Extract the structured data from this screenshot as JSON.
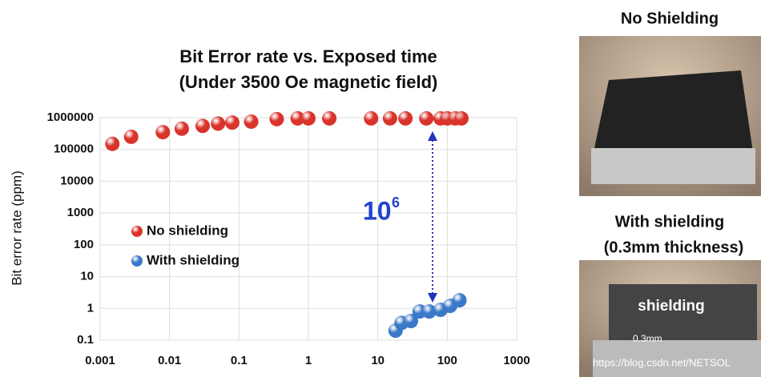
{
  "chart_data": {
    "type": "scatter",
    "title": [
      "Bit Error rate vs. Exposed time",
      "(Under 3500 Oe magnetic field)"
    ],
    "y_label": "Bit error rate  (ppm)",
    "xscale": "log",
    "yscale": "log",
    "grid": true,
    "legend": "center-left",
    "xlim": [
      0.001,
      1000
    ],
    "xticks": [
      0.001,
      0.01,
      0.1,
      1,
      10,
      100,
      1000
    ],
    "ylim": [
      0.1,
      1000000
    ],
    "yticks": [
      0.1,
      1,
      10,
      100,
      1000,
      10000,
      100000,
      1000000
    ],
    "series": [
      {
        "name": "No shielding",
        "color": "#d9342b",
        "x": [
          0.0015,
          0.0028,
          0.008,
          0.015,
          0.03,
          0.05,
          0.08,
          0.15,
          0.35,
          0.7,
          1,
          2,
          8,
          15,
          25,
          50,
          80,
          100,
          130,
          160
        ],
        "values": [
          150000,
          250000,
          350000,
          450000,
          550000,
          650000,
          700000,
          750000,
          900000,
          950000,
          950000,
          950000,
          950000,
          950000,
          950000,
          950000,
          950000,
          950000,
          950000,
          950000
        ]
      },
      {
        "name": "With shielding",
        "color": "#3a78c8",
        "x": [
          18,
          22,
          30,
          40,
          55,
          80,
          110,
          150
        ],
        "values": [
          0.2,
          0.35,
          0.4,
          0.8,
          0.8,
          0.9,
          1.2,
          1.8
        ]
      }
    ],
    "annotation": {
      "base": "10",
      "exponent": "6"
    }
  },
  "photos": [
    {
      "title": [
        "No Shielding"
      ]
    },
    {
      "title": [
        "With shielding",
        "(0.3mm thickness)"
      ],
      "labels": [
        "shielding",
        "0.3mm"
      ]
    }
  ],
  "watermark": "https://blog.csdn.net/NETSOL"
}
